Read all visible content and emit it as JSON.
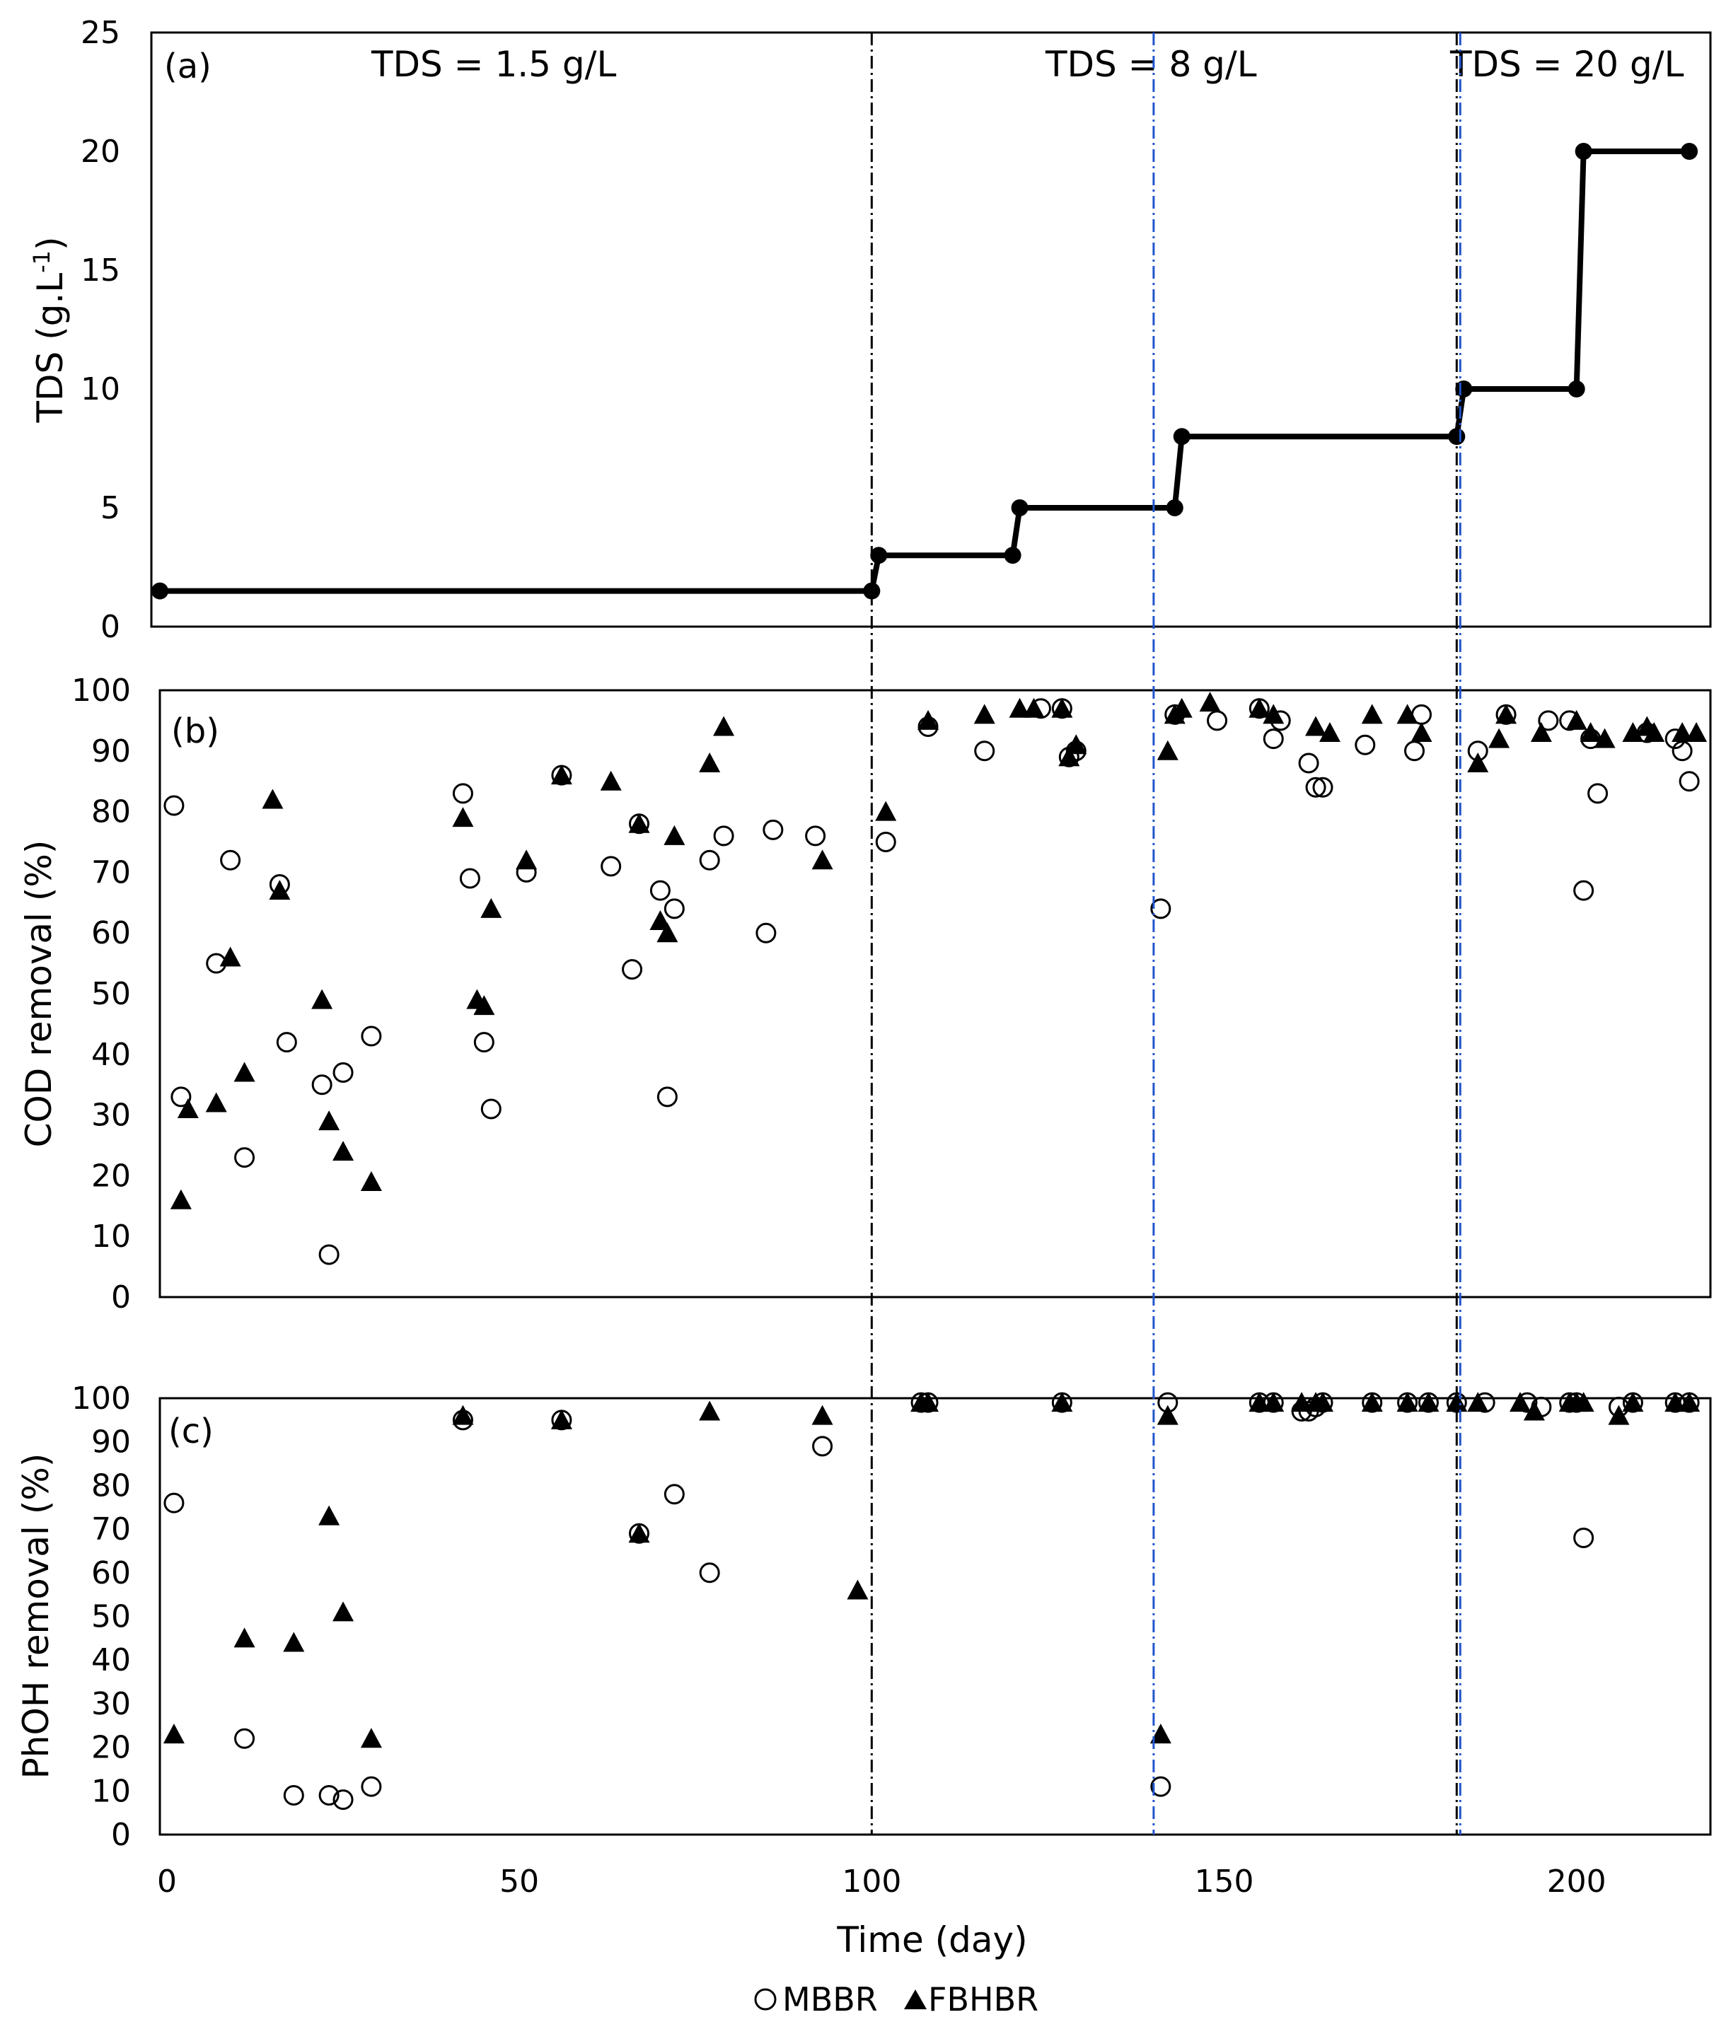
{
  "chart_data": [
    {
      "panel": "(a)",
      "type": "line",
      "ylabel": "TDS (g.L",
      "ylabel_sup": "-1",
      "ylabel_tail": ")",
      "ylim": [
        0,
        25
      ],
      "yticks": [
        0,
        5,
        10,
        15,
        20,
        25
      ],
      "xlim": [
        -1,
        219
      ],
      "annotations": [
        "TDS = 1.5 g/L",
        "TDS = 8 g/L",
        "TDS = 20 g/L"
      ],
      "series": [
        {
          "name": "TDS",
          "x": [
            -1,
            100,
            101,
            120,
            121,
            143,
            144,
            183,
            184,
            200,
            201,
            216
          ],
          "y": [
            1.5,
            1.5,
            3,
            3,
            5,
            5,
            8,
            8,
            10,
            10,
            20,
            20
          ]
        }
      ]
    },
    {
      "panel": "(b)",
      "type": "scatter",
      "ylabel": "COD removal (%)",
      "ylim": [
        0,
        100
      ],
      "yticks": [
        0,
        10,
        20,
        30,
        40,
        50,
        60,
        70,
        80,
        90,
        100
      ],
      "xlim": [
        -1,
        219
      ],
      "series": [
        {
          "name": "MBBR",
          "x": [
            1,
            2,
            9,
            11,
            7,
            16,
            17,
            22,
            23,
            25,
            29,
            42,
            43,
            45,
            46,
            51,
            56,
            63,
            66,
            67,
            70,
            71,
            72,
            77,
            79,
            85,
            86,
            92,
            102,
            108,
            116,
            124,
            127,
            128,
            129,
            141,
            143,
            149,
            155,
            157,
            158,
            162,
            163,
            164,
            170,
            177,
            178,
            186,
            190,
            196,
            199,
            201,
            202,
            203,
            210,
            214,
            215,
            216
          ],
          "y": [
            81,
            33,
            72,
            23,
            55,
            68,
            42,
            35,
            7,
            37,
            43,
            83,
            69,
            42,
            31,
            70,
            86,
            71,
            54,
            78,
            67,
            33,
            64,
            72,
            76,
            60,
            77,
            76,
            75,
            94,
            90,
            97,
            97,
            89,
            90,
            64,
            96,
            95,
            97,
            92,
            95,
            88,
            84,
            84,
            91,
            90,
            96,
            90,
            96,
            95,
            95,
            67,
            92,
            83,
            93,
            92,
            90,
            85
          ]
        },
        {
          "name": "FBHBR",
          "x": [
            2,
            3,
            7,
            9,
            11,
            15,
            16,
            22,
            23,
            25,
            29,
            42,
            44,
            45,
            46,
            51,
            56,
            63,
            67,
            70,
            71,
            72,
            77,
            79,
            93,
            102,
            108,
            116,
            121,
            123,
            127,
            128,
            129,
            142,
            143,
            144,
            148,
            155,
            157,
            163,
            165,
            171,
            176,
            178,
            186,
            189,
            190,
            195,
            200,
            202,
            204,
            208,
            210,
            211,
            215,
            217
          ],
          "y": [
            16,
            31,
            32,
            56,
            37,
            82,
            67,
            49,
            29,
            24,
            19,
            79,
            49,
            48,
            64,
            72,
            86,
            85,
            78,
            62,
            60,
            76,
            88,
            94,
            72,
            80,
            95,
            96,
            97,
            97,
            97,
            89,
            91,
            90,
            96,
            97,
            98,
            97,
            96,
            94,
            93,
            96,
            96,
            93,
            88,
            92,
            96,
            93,
            95,
            93,
            92,
            93,
            94,
            93,
            93,
            93
          ]
        }
      ]
    },
    {
      "panel": "(c)",
      "type": "scatter",
      "ylabel": "PhOH removal (%)",
      "ylim": [
        0,
        100
      ],
      "yticks": [
        0,
        10,
        20,
        30,
        40,
        50,
        60,
        70,
        80,
        90,
        100
      ],
      "xlim": [
        -1,
        219
      ],
      "xticks": [
        0,
        50,
        100,
        150,
        200
      ],
      "xlabel": "Time (day)",
      "series": [
        {
          "name": "MBBR",
          "x": [
            1,
            11,
            18,
            23,
            25,
            29,
            42,
            56,
            67,
            72,
            77,
            93,
            107,
            108,
            127,
            141,
            142,
            155,
            157,
            161,
            162,
            163,
            164,
            171,
            176,
            179,
            183,
            187,
            193,
            195,
            199,
            200,
            201,
            206,
            208,
            214,
            216
          ],
          "y": [
            76,
            22,
            9,
            9,
            8,
            11,
            95,
            95,
            69,
            78,
            60,
            89,
            99,
            99,
            99,
            11,
            99,
            99,
            99,
            97,
            97,
            98,
            99,
            99,
            99,
            99,
            99,
            99,
            99,
            98,
            99,
            99,
            68,
            98,
            99,
            99,
            99
          ]
        },
        {
          "name": "FBHBR",
          "x": [
            1,
            11,
            18,
            23,
            25,
            29,
            42,
            56,
            67,
            77,
            93,
            98,
            107,
            108,
            127,
            141,
            142,
            155,
            157,
            161,
            163,
            164,
            171,
            176,
            179,
            183,
            186,
            192,
            194,
            199,
            200,
            201,
            206,
            208,
            214,
            216
          ],
          "y": [
            23,
            45,
            44,
            73,
            51,
            22,
            96,
            95,
            69,
            97,
            96,
            56,
            99,
            99,
            99,
            23,
            96,
            99,
            99,
            99,
            99,
            99,
            99,
            99,
            99,
            99,
            99,
            99,
            97,
            99,
            99,
            99,
            96,
            99,
            99,
            99
          ]
        }
      ]
    }
  ],
  "phase_lines": {
    "black": [
      100,
      183
    ],
    "blue": [
      140,
      183.5
    ]
  },
  "legend": [
    "MBBR",
    "FBHBR"
  ],
  "colors": {
    "line": "#000000",
    "blue_dash": "#2255cc",
    "black_dash": "#000000"
  }
}
